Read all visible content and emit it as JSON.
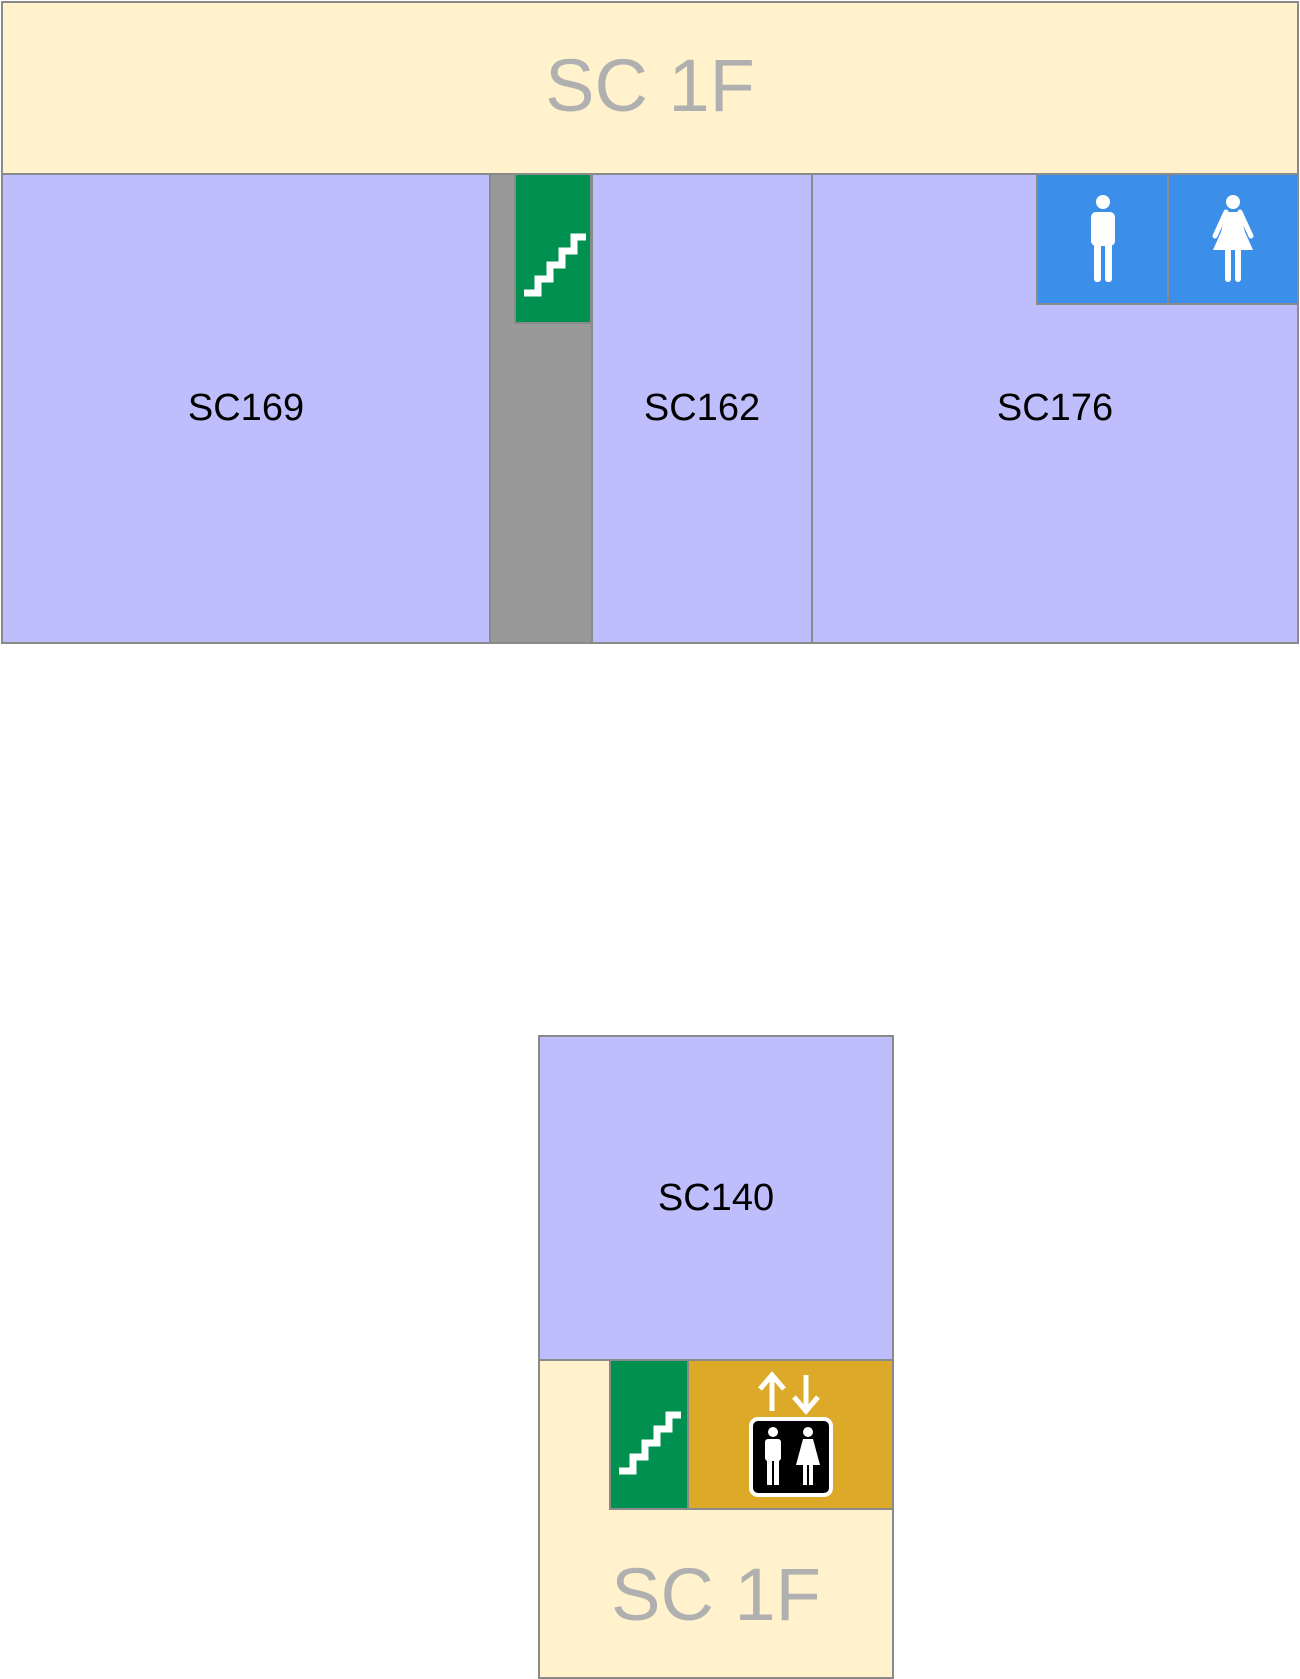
{
  "floor_label": "SC 1F",
  "rooms": {
    "sc169": "SC169",
    "sc162": "SC162",
    "sc176": "SC176",
    "sc140": "SC140"
  },
  "icons": {
    "stairs": "stairs-icon",
    "men": "men-restroom-icon",
    "women": "women-restroom-icon",
    "elevator": "elevator-icon"
  },
  "colors": {
    "corridor": "#fff2cc",
    "room": "#bfbefc",
    "stairs": "#009050",
    "restroom": "#3b8fe8",
    "elevator": "#dcaa28",
    "shaft": "#999999",
    "floor_label": "#b0b0b0"
  }
}
